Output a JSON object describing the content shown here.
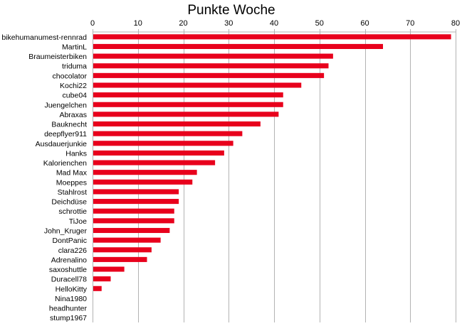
{
  "chart_data": {
    "type": "bar",
    "orientation": "horizontal",
    "title": "Punkte Woche",
    "xlabel": "",
    "ylabel": "",
    "xlim": [
      0,
      80
    ],
    "x_ticks": [
      "0",
      "10",
      "20",
      "30",
      "40",
      "50",
      "60",
      "70",
      "80"
    ],
    "x_axis_position": "top",
    "grid": true,
    "legend": "none",
    "bar_color": "#e8001c",
    "categories": [
      "bikehumanumest-rennrad",
      "MartinL",
      "Braumeisterbiken",
      "triduma",
      "chocolator",
      "Kochi22",
      "cube04",
      "Juengelchen",
      "Abraxas",
      "Bauknecht",
      "deepflyer911",
      "Ausdauerjunkie",
      "Hanks",
      "Kalorienchen",
      "Mad Max",
      "Moeppes",
      "Stahlrost",
      "Deichdüse",
      "schrottie",
      "TiJoe",
      "John_Kruger",
      "DontPanic",
      "clara226",
      "Adrenalino",
      "saxoshuttle",
      "Duracell78",
      "HelloKitty",
      "Nina1980",
      "headhunter",
      "stump1967"
    ],
    "values": [
      79,
      64,
      53,
      52,
      51,
      46,
      42,
      42,
      41,
      37,
      33,
      31,
      29,
      27,
      23,
      22,
      19,
      19,
      18,
      18,
      17,
      15,
      13,
      12,
      7,
      4,
      2,
      0,
      0,
      0
    ]
  }
}
